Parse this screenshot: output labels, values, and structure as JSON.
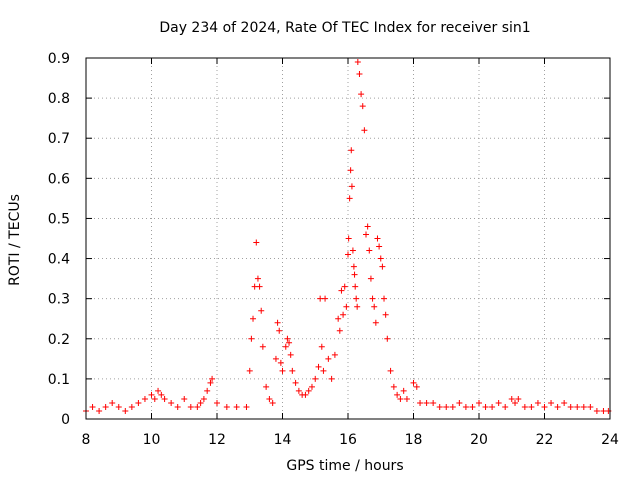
{
  "chart_data": {
    "type": "scatter",
    "title": "Day 234 of 2024, Rate Of TEC Index for receiver sin1",
    "xlabel": "GPS time / hours",
    "ylabel": "ROTI / TECUs",
    "xlim": [
      8,
      24
    ],
    "ylim": [
      0,
      0.9
    ],
    "x_ticks": [
      8,
      10,
      12,
      14,
      16,
      18,
      20,
      22,
      24
    ],
    "x_tick_labels": [
      "8",
      "10",
      "12",
      "14",
      "16",
      "18",
      "20",
      "22",
      "24"
    ],
    "y_ticks": [
      0,
      0.1,
      0.2,
      0.3,
      0.4,
      0.5,
      0.6,
      0.7,
      0.8,
      0.9
    ],
    "y_tick_labels": [
      "0",
      "0.1",
      "0.2",
      "0.3",
      "0.4",
      "0.5",
      "0.6",
      "0.7",
      "0.8",
      "0.9"
    ],
    "grid": true,
    "marker": "plus",
    "series_color": "#ff0000",
    "series": [
      {
        "name": "ROTI",
        "x": [
          8.0,
          8.2,
          8.4,
          8.6,
          8.8,
          9.0,
          9.2,
          9.4,
          9.6,
          9.8,
          10.0,
          10.1,
          10.2,
          10.3,
          10.4,
          10.6,
          10.8,
          11.0,
          11.2,
          11.4,
          11.5,
          11.6,
          11.7,
          11.8,
          11.85,
          12.0,
          12.3,
          12.6,
          12.9,
          13.0,
          13.05,
          13.1,
          13.15,
          13.2,
          13.25,
          13.3,
          13.35,
          13.4,
          13.5,
          13.6,
          13.7,
          13.8,
          13.85,
          13.9,
          13.95,
          14.0,
          14.1,
          14.15,
          14.2,
          14.25,
          14.3,
          14.4,
          14.5,
          14.6,
          14.7,
          14.8,
          14.9,
          15.0,
          15.1,
          15.15,
          15.2,
          15.25,
          15.3,
          15.4,
          15.5,
          15.6,
          15.7,
          15.75,
          15.8,
          15.85,
          15.9,
          15.95,
          16.0,
          16.02,
          16.05,
          16.08,
          16.1,
          16.12,
          16.15,
          16.18,
          16.2,
          16.22,
          16.25,
          16.28,
          16.3,
          16.35,
          16.4,
          16.45,
          16.5,
          16.55,
          16.6,
          16.65,
          16.7,
          16.75,
          16.8,
          16.85,
          16.9,
          16.95,
          17.0,
          17.05,
          17.1,
          17.15,
          17.2,
          17.3,
          17.4,
          17.5,
          17.6,
          17.7,
          17.8,
          18.0,
          18.1,
          18.2,
          18.4,
          18.6,
          18.8,
          19.0,
          19.2,
          19.4,
          19.6,
          19.8,
          20.0,
          20.2,
          20.4,
          20.6,
          20.8,
          21.0,
          21.1,
          21.2,
          21.4,
          21.6,
          21.8,
          22.0,
          22.2,
          22.4,
          22.6,
          22.8,
          23.0,
          23.2,
          23.4,
          23.6,
          23.8,
          23.95
        ],
        "y": [
          0.02,
          0.03,
          0.02,
          0.03,
          0.04,
          0.03,
          0.02,
          0.03,
          0.04,
          0.05,
          0.06,
          0.05,
          0.07,
          0.06,
          0.05,
          0.04,
          0.03,
          0.05,
          0.03,
          0.03,
          0.04,
          0.05,
          0.07,
          0.09,
          0.1,
          0.04,
          0.03,
          0.03,
          0.03,
          0.12,
          0.2,
          0.25,
          0.33,
          0.44,
          0.35,
          0.33,
          0.27,
          0.18,
          0.08,
          0.05,
          0.04,
          0.15,
          0.24,
          0.22,
          0.14,
          0.12,
          0.18,
          0.2,
          0.19,
          0.16,
          0.12,
          0.09,
          0.07,
          0.06,
          0.06,
          0.07,
          0.08,
          0.1,
          0.13,
          0.3,
          0.18,
          0.12,
          0.3,
          0.15,
          0.1,
          0.16,
          0.25,
          0.22,
          0.32,
          0.26,
          0.33,
          0.28,
          0.41,
          0.45,
          0.55,
          0.62,
          0.67,
          0.58,
          0.42,
          0.38,
          0.36,
          0.33,
          0.3,
          0.28,
          0.89,
          0.86,
          0.81,
          0.78,
          0.72,
          0.46,
          0.48,
          0.42,
          0.35,
          0.3,
          0.28,
          0.24,
          0.45,
          0.43,
          0.4,
          0.38,
          0.3,
          0.26,
          0.2,
          0.12,
          0.08,
          0.06,
          0.05,
          0.07,
          0.05,
          0.09,
          0.08,
          0.04,
          0.04,
          0.04,
          0.03,
          0.03,
          0.03,
          0.04,
          0.03,
          0.03,
          0.04,
          0.03,
          0.03,
          0.04,
          0.03,
          0.05,
          0.04,
          0.05,
          0.03,
          0.03,
          0.04,
          0.03,
          0.04,
          0.03,
          0.04,
          0.03,
          0.03,
          0.03,
          0.03,
          0.02,
          0.02,
          0.02
        ]
      }
    ]
  }
}
